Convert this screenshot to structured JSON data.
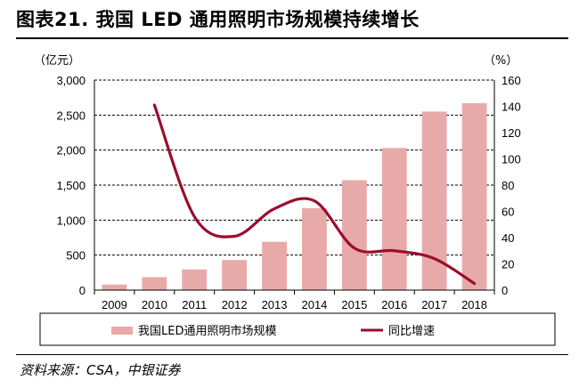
{
  "title": "图表21. 我国 LED 通用照明市场规模持续增长",
  "source": "资料来源：CSA，中银证券",
  "colors": {
    "bar": "#e8aaa8",
    "line": "#9a0e2e",
    "grid": "#000000"
  },
  "chart_data": {
    "type": "bar",
    "categories": [
      "2009",
      "2010",
      "2011",
      "2012",
      "2013",
      "2014",
      "2015",
      "2016",
      "2017",
      "2018"
    ],
    "series": [
      {
        "name": "我国LED通用照明市场规模",
        "type": "bar",
        "axis": "left",
        "values": [
          80,
          185,
          295,
          430,
          690,
          1170,
          1570,
          2030,
          2550,
          2670
        ]
      },
      {
        "name": "同比增速",
        "type": "line",
        "axis": "right",
        "values": [
          null,
          141,
          56,
          41,
          62,
          68,
          32,
          30,
          24,
          5
        ]
      }
    ],
    "yleft": {
      "unit": "（亿元）",
      "range": [
        0,
        3000
      ],
      "ticks": [
        "0",
        "500",
        "1,000",
        "1,500",
        "2,000",
        "2,500",
        "3,000"
      ]
    },
    "yright": {
      "unit": "（%）",
      "range": [
        0,
        160
      ],
      "ticks": [
        "0",
        "20",
        "40",
        "60",
        "80",
        "100",
        "120",
        "140",
        "160"
      ]
    },
    "legend": {
      "position": "bottom",
      "entries": [
        "我国LED通用照明市场规模",
        "同比增速"
      ]
    },
    "grid": true
  }
}
